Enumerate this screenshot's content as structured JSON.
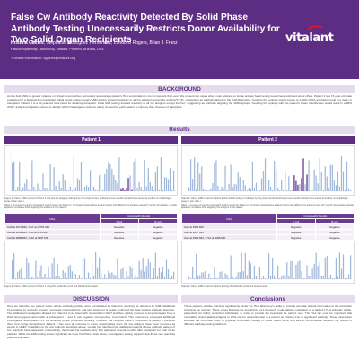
{
  "poster": {
    "title": "False Cw Antibody Reactivity Detected By Solid Phase Antibody Testing Unecessarily Restricts Donor Availability for Two Solid Organ Recipients",
    "authors_bold": "Kristina Gaines",
    "authors_rest": ", Stephanie Rodriguez Hernandez, Londonn Rogers, Brian J. Franz",
    "affiliation": "Histocompatibility Laboratory, Vitalant, Phoenix, Arizona, USA",
    "contact": "*Contact information: kgaines@vitalant.org",
    "logo": "vitalant",
    "logo_icon": "vitalant-swoosh-icon"
  },
  "background": {
    "heading": "BACKGROUND",
    "text": "As the field shifts to greater reliance on virtual crossmatches, accurately assessing a patient's HLA sensitization is more important than ever. We present two cases where sole reliance on single antigen bead testing would have restricted donor offers. Patient 1 is a 73-year-old male evaluated for a bilateral lung transplant. Initial single antigen bead (SAB) testing showed reactivity to all Cw antigens except for anti-Cw*17:01, suggesting an antibody targeting the KAK46 epitope. Avoiding this epitope would equate to a 60% cPRA and likely result in a delay in transplant. Patient 2 is a 61-year-old male listed for a kidney transplant. Initial SAB testing showed reactivity to all Cw antigens except for Cw7, suggesting an antibody targeting the 163R epitope. Avoiding this epitope with the patient's Class II antibodies would result in a 98% cPRA. Initial investigations aimed to identify which Cw antigens could be safely crossed for each patient to improve their chances of transplant."
  },
  "results": {
    "heading": "Results",
    "patient1": {
      "title": "Patient 1",
      "chart_caption": "Figure 1: Class I SAB results for Patient 1 with anti-Cw antigens indicated by the purple arrows. Antibody screen results indicated here tested as positive on multiantigen assay in pan class I.",
      "crossmatch_caption": "Table 1: A review of a single crossmatch testing results for Patient 1. Surrogate crossmatches against donors with differing Cw antigens were all T and B cell negative, despite apparent cumulative DSA targeting Cw antigens in the patient.",
      "table": {
        "headers": [
          "DSA",
          "Crossmatch Results",
          "T cell",
          "B cell"
        ],
        "rows": [
          [
            "Cw5 at 1071 MFI, Cw7 at 12751 MFI",
            "Negative",
            "Negative"
          ],
          [
            "Cw3 at 8249 MFI, Cw6 at 9763 MFI",
            "Negative",
            "Negative"
          ],
          [
            "Cw3 at 2889 MFI, C*16 at 5287 MFI",
            "Negative",
            "Negative"
          ],
          [
            "Cw5 at 1715 MFI",
            "Negative",
            "Negative"
          ]
        ]
      },
      "lower_caption": "Figure 2: Class I SAB results for Patient 1 using DA, antibodies at 2X and dithiothreitol treated."
    },
    "patient2": {
      "title": "Patient 2",
      "chart_caption": "Figure 3: Class I SAB results for Patient 2 with anti-Cw antigens indicated by the purple arrows. Antibody screen results indicated here tested as positive on multiantigen assay in pan class I.",
      "crossmatch_caption": "Table 2: A review of a single crossmatch testing results for Patient 2. Surrogate crossmatches against donors with differing Cw antigens were all T and B cell negative, despite apparent cumulative DSA targeting Cw antigens in the patient.",
      "table": {
        "headers": [
          "DSA",
          "Crossmatch Results",
          "T cell",
          "B cell"
        ],
        "rows": [
          [
            "Cw6 at 3594 MFI",
            "Negative",
            "Negative"
          ],
          [
            "Cw6 at 3847 MFI",
            "Negative",
            "Negative"
          ],
          [
            "Cw6 at 2962 MFI, C*12 at 6088 MFI",
            "Negative",
            "Negative"
          ],
          [
            "Cw8 at 4897 MFI, DQ2 at 26114 MFI",
            "Negative",
            "Positive"
          ]
        ]
      },
      "lower_caption": "Figure 4: Class I SAB results for Patient 2 using 2X antibodies at DA and treated beads."
    }
  },
  "discussion": {
    "heading": "DISCUSSION",
    "text": "Here we describe two patient cases whose antibody profiles were complicated by false Cw reactivity as detected by SAB. Additional investigation by antibody screens, surrogate crossmatching, and acid treatment of beads confirmed the false positive antibody detection. The additional investigation allowed for Patient 1 to be listed with no avoids in UNET and they quickly received a lung transplant from a DSA homozygous donor with a subsequent T and B cell negative retrospective crossmatch. This experience prompted additional investigation when patient 2's Cw antibody profile presented similarly; however, the complex class II antibodies of patient 2 prevents them from being transplanted. Patient 2 has seen an increase in donor opportunities since the Cw antigens have been removed as avoids in UNET. In addition to the two patients described above, our lab has identified two additional patients whose antibody pattern of Cw reactivity have appeared. Interestingly, the broad Cw reactivity only first appeared several months after transplant for both these patients. While the SAB testing shows significant de novo Cw DSA in both cases, investigation testing supports that these new reactivity patterns are false."
  },
  "conclusions": {
    "heading": "Conclusions",
    "text": "These patterns of false reactivity significantly hinder the HLA laboratory's ability to provide accurate clinical information to the transplant programs we support. These cases illustrate the importance of a thorough, multi-platform evaluation of a patient's HLA antibody profile, particularly for highly sensitized individuals, in order to provide the best data for patient care. The HLA lab must be cognizant that overcalling unacceptable antigens or DSA can be as detrimental to a patient as missing true or significant antibody. These cases also illustrate the continued utility of physical crossmatch testing in cases where there is a lack of concordance between the results of different antibody testing platforms."
  }
}
